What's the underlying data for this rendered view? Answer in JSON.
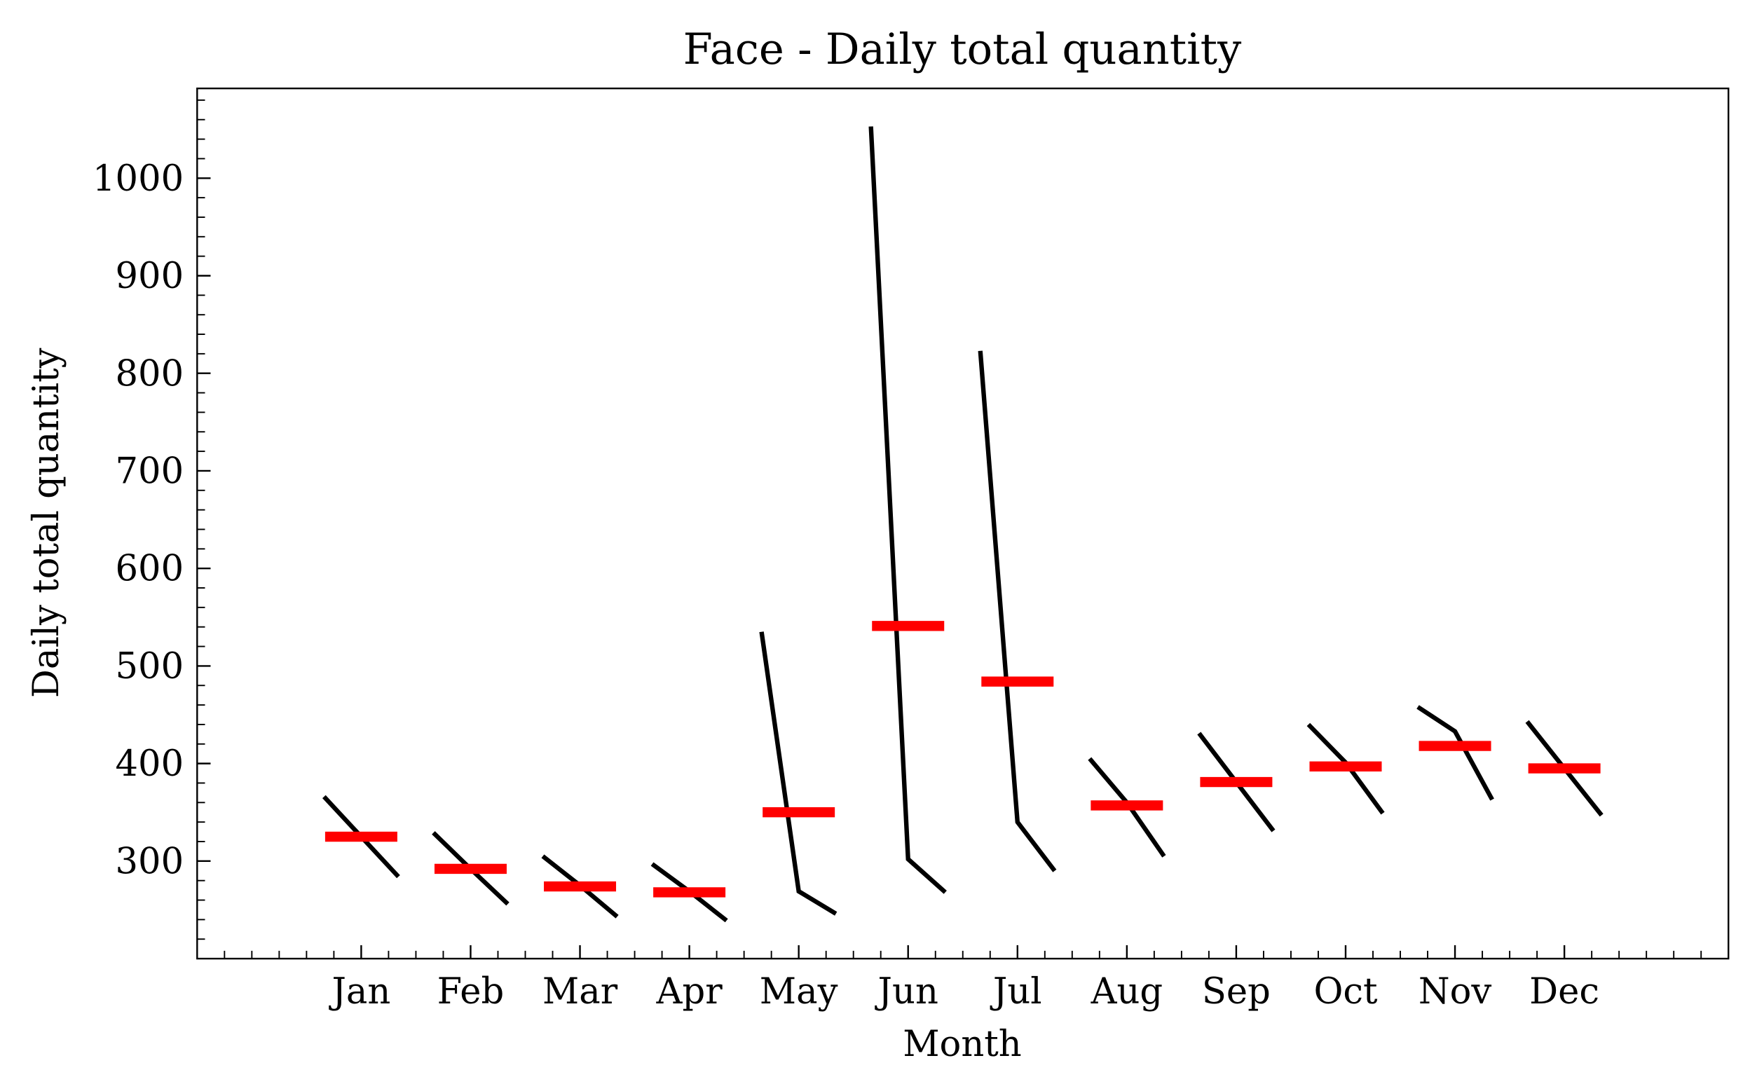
{
  "chart_data": {
    "type": "month_plot",
    "title": "Face - Daily total quantity",
    "xlabel": "Month",
    "ylabel": "Daily total quantity",
    "categories": [
      "Jan",
      "Feb",
      "Mar",
      "Apr",
      "May",
      "Jun",
      "Jul",
      "Aug",
      "Sep",
      "Oct",
      "Nov",
      "Dec"
    ],
    "subseries": [
      [
        366,
        325,
        284
      ],
      [
        329,
        292,
        256
      ],
      [
        305,
        275,
        243
      ],
      [
        297,
        269,
        239
      ],
      [
        535,
        269,
        246
      ],
      [
        1053,
        302,
        268
      ],
      [
        823,
        340,
        290
      ],
      [
        405,
        360,
        305
      ],
      [
        431,
        381,
        331
      ],
      [
        440,
        401,
        349
      ],
      [
        458,
        433,
        363
      ],
      [
        443,
        395,
        347
      ]
    ],
    "means": [
      325,
      292,
      274,
      268,
      350,
      541,
      484,
      357,
      381,
      397,
      418,
      395
    ],
    "line_color": "#000000",
    "mean_color": "#ff0000",
    "xlim": [
      -1.5,
      12.5
    ],
    "ylim": [
      200,
      1092
    ],
    "yticks": [
      300,
      400,
      500,
      600,
      700,
      800,
      900,
      1000
    ],
    "yminorticks": [
      220,
      240,
      260,
      280,
      320,
      340,
      360,
      380,
      420,
      440,
      460,
      480,
      520,
      540,
      560,
      580,
      620,
      640,
      660,
      680,
      720,
      740,
      760,
      780,
      820,
      840,
      860,
      880,
      920,
      940,
      960,
      980,
      1020,
      1040,
      1060,
      1080
    ],
    "xminorticks": [
      -1.25,
      -1,
      -0.75,
      -0.5,
      -0.25,
      0.25,
      0.5,
      0.75,
      1.25,
      1.5,
      1.75,
      2.25,
      2.5,
      2.75,
      3.25,
      3.5,
      3.75,
      4.25,
      4.5,
      4.75,
      5.25,
      5.5,
      5.75,
      6.25,
      6.5,
      6.75,
      7.25,
      7.5,
      7.75,
      8.25,
      8.5,
      8.75,
      9.25,
      9.5,
      9.75,
      10.25,
      10.5,
      10.75,
      11.25,
      11.5,
      11.75,
      12,
      12.25
    ]
  }
}
